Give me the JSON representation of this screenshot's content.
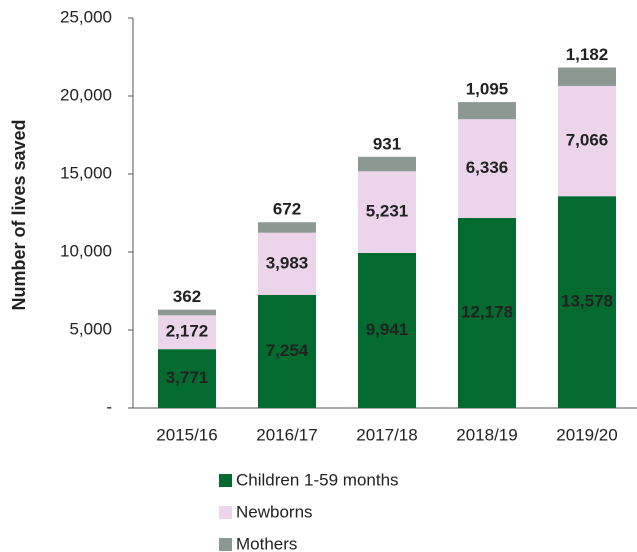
{
  "chart_data": {
    "type": "stacked_bar",
    "y_label": "Number of lives saved",
    "categories": [
      "2015/16",
      "2016/17",
      "2017/18",
      "2018/19",
      "2019/20"
    ],
    "series": [
      {
        "name": "Children 1-59 months",
        "color": "#046b30",
        "values": [
          3771,
          7254,
          9941,
          12178,
          13578
        ],
        "value_labels": [
          "3,771",
          "7,254",
          "9,941",
          "12,178",
          "13,578"
        ]
      },
      {
        "name": "Newborns",
        "color": "#ecd4ea",
        "values": [
          2172,
          3983,
          5231,
          6336,
          7066
        ],
        "value_labels": [
          "2,172",
          "3,983",
          "5,231",
          "6,336",
          "7,066"
        ]
      },
      {
        "name": "Mothers",
        "color": "#8c9892",
        "values": [
          362,
          672,
          931,
          1095,
          1182
        ],
        "value_labels": [
          "362",
          "672",
          "931",
          "1,095",
          "1,182"
        ]
      }
    ],
    "ylim": [
      0,
      25000
    ],
    "yticks": [
      {
        "value": 0,
        "label": "-"
      },
      {
        "value": 5000,
        "label": "5,000"
      },
      {
        "value": 10000,
        "label": "10,000"
      },
      {
        "value": 15000,
        "label": "15,000"
      },
      {
        "value": 20000,
        "label": "20,000"
      },
      {
        "value": 25000,
        "label": "25,000"
      }
    ]
  }
}
